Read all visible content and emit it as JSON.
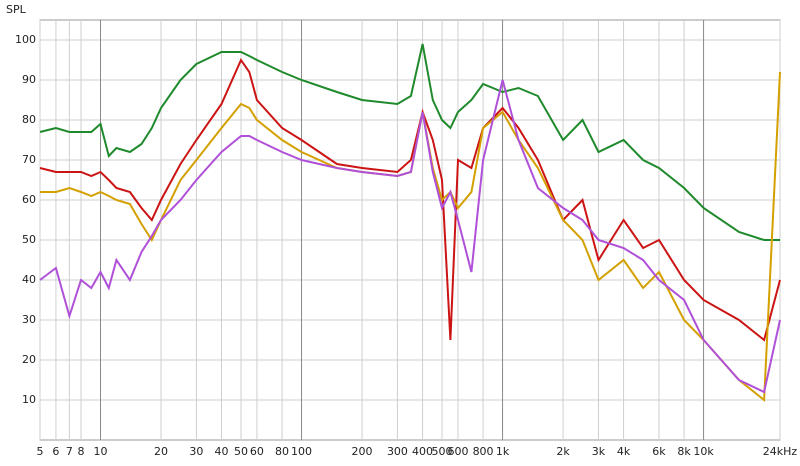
{
  "chart_data": {
    "type": "line",
    "ylabel": "SPL",
    "xlog": true,
    "grid": true,
    "xlim": [
      5,
      24000
    ],
    "ylim": [
      0,
      105
    ],
    "yticks": [
      10,
      20,
      30,
      40,
      50,
      60,
      70,
      80,
      90,
      100
    ],
    "xticks": [
      5,
      6,
      7,
      8,
      10,
      20,
      30,
      40,
      50,
      60,
      80,
      100,
      200,
      300,
      400,
      500,
      600,
      800,
      {
        "value": 1000,
        "label": "1k"
      },
      {
        "value": 2000,
        "label": "2k"
      },
      {
        "value": 3000,
        "label": "3k"
      },
      {
        "value": 4000,
        "label": "4k"
      },
      {
        "value": 6000,
        "label": "6k"
      },
      {
        "value": 8000,
        "label": "8k"
      },
      {
        "value": 10000,
        "label": "10k"
      },
      {
        "value": 24000,
        "label": "24kHz"
      }
    ],
    "x": [
      5,
      6,
      7,
      8,
      9,
      10,
      11,
      12,
      14,
      16,
      18,
      20,
      25,
      30,
      40,
      50,
      55,
      60,
      80,
      100,
      150,
      200,
      300,
      350,
      400,
      450,
      500,
      550,
      600,
      700,
      800,
      1000,
      1200,
      1500,
      2000,
      2500,
      3000,
      4000,
      5000,
      6000,
      8000,
      10000,
      15000,
      20000,
      24000
    ],
    "series": [
      {
        "color": "#1f8a2c",
        "values": [
          77,
          78,
          77,
          77,
          77,
          79,
          71,
          73,
          72,
          74,
          78,
          83,
          90,
          94,
          97,
          97,
          96,
          95,
          92,
          90,
          87,
          85,
          84,
          86,
          99,
          85,
          80,
          78,
          82,
          85,
          89,
          87,
          88,
          86,
          75,
          80,
          72,
          75,
          70,
          68,
          63,
          58,
          52,
          50,
          50
        ]
      },
      {
        "color": "#cc1414",
        "values": [
          68,
          67,
          67,
          67,
          66,
          67,
          65,
          63,
          62,
          58,
          55,
          60,
          69,
          75,
          84,
          95,
          92,
          85,
          78,
          75,
          69,
          68,
          67,
          70,
          82,
          75,
          65,
          25,
          70,
          68,
          78,
          83,
          78,
          70,
          55,
          60,
          45,
          55,
          48,
          50,
          40,
          35,
          30,
          25,
          40
        ]
      },
      {
        "color": "#d4a000",
        "values": [
          62,
          62,
          63,
          62,
          61,
          62,
          61,
          60,
          59,
          54,
          50,
          55,
          65,
          70,
          78,
          84,
          83,
          80,
          75,
          72,
          68,
          67,
          66,
          67,
          82,
          68,
          60,
          62,
          58,
          62,
          78,
          82,
          75,
          68,
          55,
          50,
          40,
          45,
          38,
          42,
          30,
          25,
          15,
          10,
          92
        ]
      },
      {
        "color": "#b050d8",
        "values": [
          40,
          43,
          31,
          40,
          38,
          42,
          38,
          45,
          40,
          47,
          51,
          55,
          60,
          65,
          72,
          76,
          76,
          75,
          72,
          70,
          68,
          67,
          66,
          67,
          82,
          67,
          58,
          62,
          55,
          42,
          70,
          90,
          75,
          63,
          58,
          55,
          50,
          48,
          45,
          40,
          35,
          25,
          15,
          12,
          30
        ]
      }
    ]
  }
}
